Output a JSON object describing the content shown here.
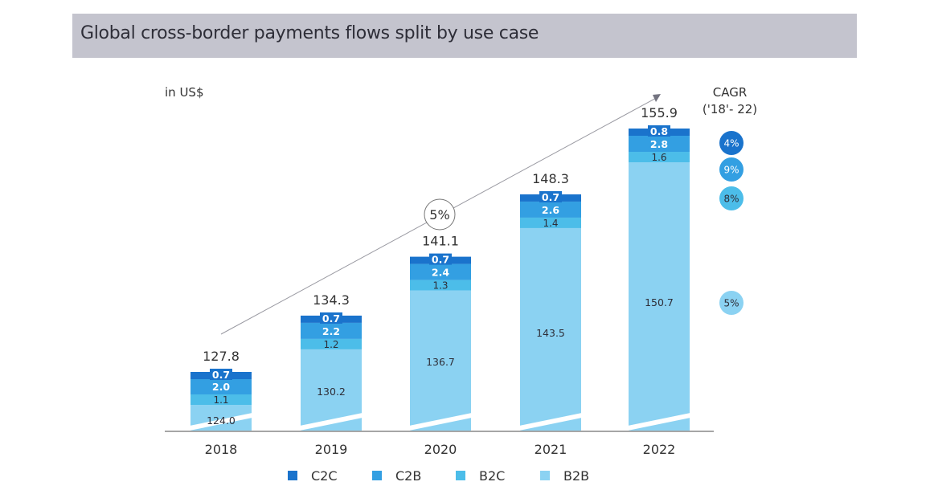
{
  "title": "Global cross-border payments flows split by use case",
  "chart_data": {
    "type": "bar",
    "stacked": true,
    "title": "Global cross-border payments flows split by use case",
    "unit_label": "in US$",
    "xlabel": "",
    "ylabel": "",
    "categories": [
      "2018",
      "2019",
      "2020",
      "2021",
      "2022"
    ],
    "totals": [
      127.8,
      134.3,
      141.1,
      148.3,
      155.9
    ],
    "series": [
      {
        "name": "B2B",
        "color": "#8bd2f2",
        "values": [
          124.0,
          130.2,
          136.7,
          143.5,
          150.7
        ],
        "label_color": "#2e2e38",
        "cagr": "5%",
        "cagr_color": "#8bd2f2",
        "cagr_text_color": "#2e2e38"
      },
      {
        "name": "B2C",
        "color": "#4cbde9",
        "values": [
          1.1,
          1.2,
          1.3,
          1.4,
          1.6
        ],
        "label_color": "#2e2e38",
        "cagr": "8%",
        "cagr_color": "#4cbde9",
        "cagr_text_color": "#2e2e38"
      },
      {
        "name": "C2B",
        "color": "#339fe2",
        "values": [
          2.0,
          2.2,
          2.4,
          2.6,
          2.8
        ],
        "label_color": "#ffffff",
        "cagr": "9%",
        "cagr_color": "#339fe2",
        "cagr_text_color": "#ffffff"
      },
      {
        "name": "C2C",
        "color": "#1a73cc",
        "values": [
          0.7,
          0.7,
          0.7,
          0.7,
          0.8
        ],
        "label_color": "#ffffff",
        "cagr": "4%",
        "cagr_color": "#1a73cc",
        "cagr_text_color": "#ffffff"
      }
    ],
    "legend": {
      "placement": "bottom",
      "order": [
        "C2C",
        "C2B",
        "B2C",
        "B2B"
      ]
    },
    "cagr_header": [
      "CAGR",
      "('18'- 22)"
    ],
    "trend": {
      "label": "5%"
    },
    "axis_break": true,
    "grid": false
  }
}
